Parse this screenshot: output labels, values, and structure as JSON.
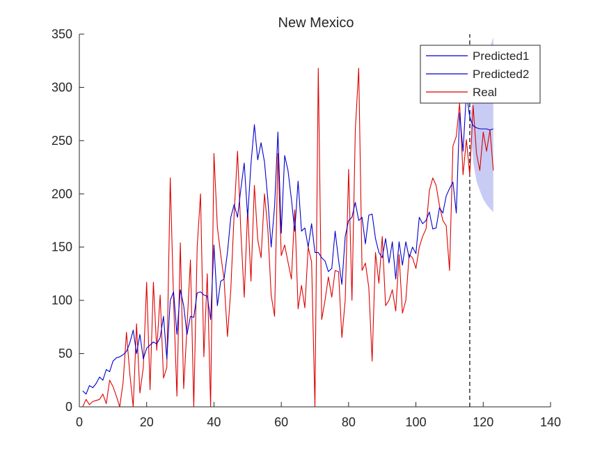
{
  "chart_data": {
    "type": "line",
    "title": "New Mexico",
    "xlabel": "",
    "ylabel": "",
    "xlim": [
      0,
      140
    ],
    "ylim": [
      0,
      350
    ],
    "xticks": [
      0,
      20,
      40,
      60,
      80,
      100,
      120,
      140
    ],
    "yticks": [
      0,
      50,
      100,
      150,
      200,
      250,
      300,
      350
    ],
    "grid": false,
    "legend_position": "top-right",
    "forecast_start_x": 116,
    "series": [
      {
        "name": "Predicted1",
        "color": "#0000cc",
        "x": [
          1,
          2,
          3,
          4,
          5,
          6,
          7,
          8,
          9,
          10,
          11,
          12,
          13,
          14,
          15,
          16,
          17,
          18,
          19,
          20,
          21,
          22,
          23,
          24,
          25,
          26,
          27,
          28,
          29,
          30,
          31,
          32,
          33,
          34,
          35,
          36,
          37,
          38,
          39,
          40,
          41,
          42,
          43,
          44,
          45,
          46,
          47,
          48,
          49,
          50,
          51,
          52,
          53,
          54,
          55,
          56,
          57,
          58,
          59,
          60,
          61,
          62,
          63,
          64,
          65,
          66,
          67,
          68,
          69,
          70,
          71,
          72,
          73,
          74,
          75,
          76,
          77,
          78,
          79,
          80,
          81,
          82,
          83,
          84,
          85,
          86,
          87,
          88,
          89,
          90,
          91,
          92,
          93,
          94,
          95,
          96,
          97,
          98,
          99,
          100,
          101,
          102,
          103,
          104,
          105,
          106,
          107,
          108,
          109,
          110,
          111,
          112,
          113,
          114,
          115,
          116
        ],
        "y": [
          15,
          12,
          20,
          18,
          22,
          28,
          25,
          35,
          33,
          43,
          46,
          47,
          49,
          52,
          60,
          72,
          50,
          68,
          45,
          55,
          58,
          61,
          59,
          65,
          85,
          45,
          100,
          108,
          68,
          110,
          95,
          68,
          85,
          84,
          107,
          108,
          105,
          104,
          82,
          152,
          95,
          118,
          120,
          145,
          178,
          190,
          178,
          205,
          229,
          178,
          228,
          265,
          232,
          248,
          230,
          195,
          150,
          188,
          258,
          163,
          236,
          222,
          195,
          165,
          212,
          165,
          168,
          150,
          172,
          145,
          145,
          140,
          137,
          127,
          130,
          165,
          138,
          115,
          160,
          175,
          178,
          192,
          175,
          178,
          153,
          180,
          181,
          158,
          145,
          140,
          158,
          135,
          155,
          120,
          155,
          133,
          155,
          140,
          150,
          144,
          178,
          172,
          175,
          183,
          167,
          168,
          187,
          182,
          198,
          205,
          211,
          182,
          276,
          240,
          295,
          272
        ]
      },
      {
        "name": "Predicted2",
        "color": "#0000cc",
        "x": [
          116,
          117,
          118,
          119,
          120,
          121,
          122,
          123
        ],
        "y": [
          272,
          264,
          262,
          261,
          261,
          261,
          260,
          261
        ]
      },
      {
        "name": "Real",
        "color": "#dd0000",
        "x": [
          1,
          2,
          3,
          4,
          5,
          6,
          7,
          8,
          9,
          10,
          11,
          12,
          13,
          14,
          15,
          16,
          17,
          18,
          19,
          20,
          21,
          22,
          23,
          24,
          25,
          26,
          27,
          28,
          29,
          30,
          31,
          32,
          33,
          34,
          35,
          36,
          37,
          38,
          39,
          40,
          41,
          42,
          43,
          44,
          45,
          46,
          47,
          48,
          49,
          50,
          51,
          52,
          53,
          54,
          55,
          56,
          57,
          58,
          59,
          60,
          61,
          62,
          63,
          64,
          65,
          66,
          67,
          68,
          69,
          70,
          71,
          72,
          73,
          74,
          75,
          76,
          77,
          78,
          79,
          80,
          81,
          82,
          83,
          84,
          85,
          86,
          87,
          88,
          89,
          90,
          91,
          92,
          93,
          94,
          95,
          96,
          97,
          98,
          99,
          100,
          101,
          102,
          103,
          104,
          105,
          106,
          107,
          108,
          109,
          110,
          111,
          112,
          113,
          114,
          115,
          116,
          117,
          118,
          119,
          120,
          121,
          122,
          123
        ],
        "y": [
          0,
          7,
          2,
          5,
          6,
          7,
          12,
          3,
          25,
          19,
          10,
          0,
          23,
          70,
          31,
          0,
          78,
          13,
          37,
          117,
          16,
          117,
          53,
          105,
          27,
          37,
          215,
          100,
          10,
          154,
          17,
          75,
          138,
          0,
          150,
          200,
          47,
          125,
          0,
          238,
          169,
          143,
          120,
          66,
          110,
          181,
          240,
          164,
          103,
          185,
          118,
          208,
          157,
          140,
          200,
          167,
          105,
          85,
          238,
          142,
          152,
          136,
          120,
          185,
          92,
          114,
          93,
          150,
          136,
          0,
          318,
          82,
          100,
          122,
          103,
          128,
          127,
          65,
          100,
          223,
          100,
          260,
          318,
          128,
          135,
          112,
          43,
          145,
          116,
          160,
          95,
          100,
          110,
          90,
          143,
          88,
          100,
          143,
          140,
          130,
          150,
          160,
          167,
          203,
          215,
          208,
          189,
          175,
          170,
          128,
          245,
          254,
          285,
          218,
          251,
          218,
          283,
          238,
          222,
          258,
          240,
          260,
          222
        ]
      }
    ],
    "predicted2_band": {
      "color": "#c8ccf5",
      "x": [
        116,
        117,
        118,
        119,
        120,
        121,
        122,
        123
      ],
      "upper": [
        272,
        290,
        300,
        310,
        318,
        328,
        338,
        347
      ],
      "lower": [
        272,
        230,
        212,
        203,
        195,
        190,
        186,
        183
      ]
    }
  }
}
